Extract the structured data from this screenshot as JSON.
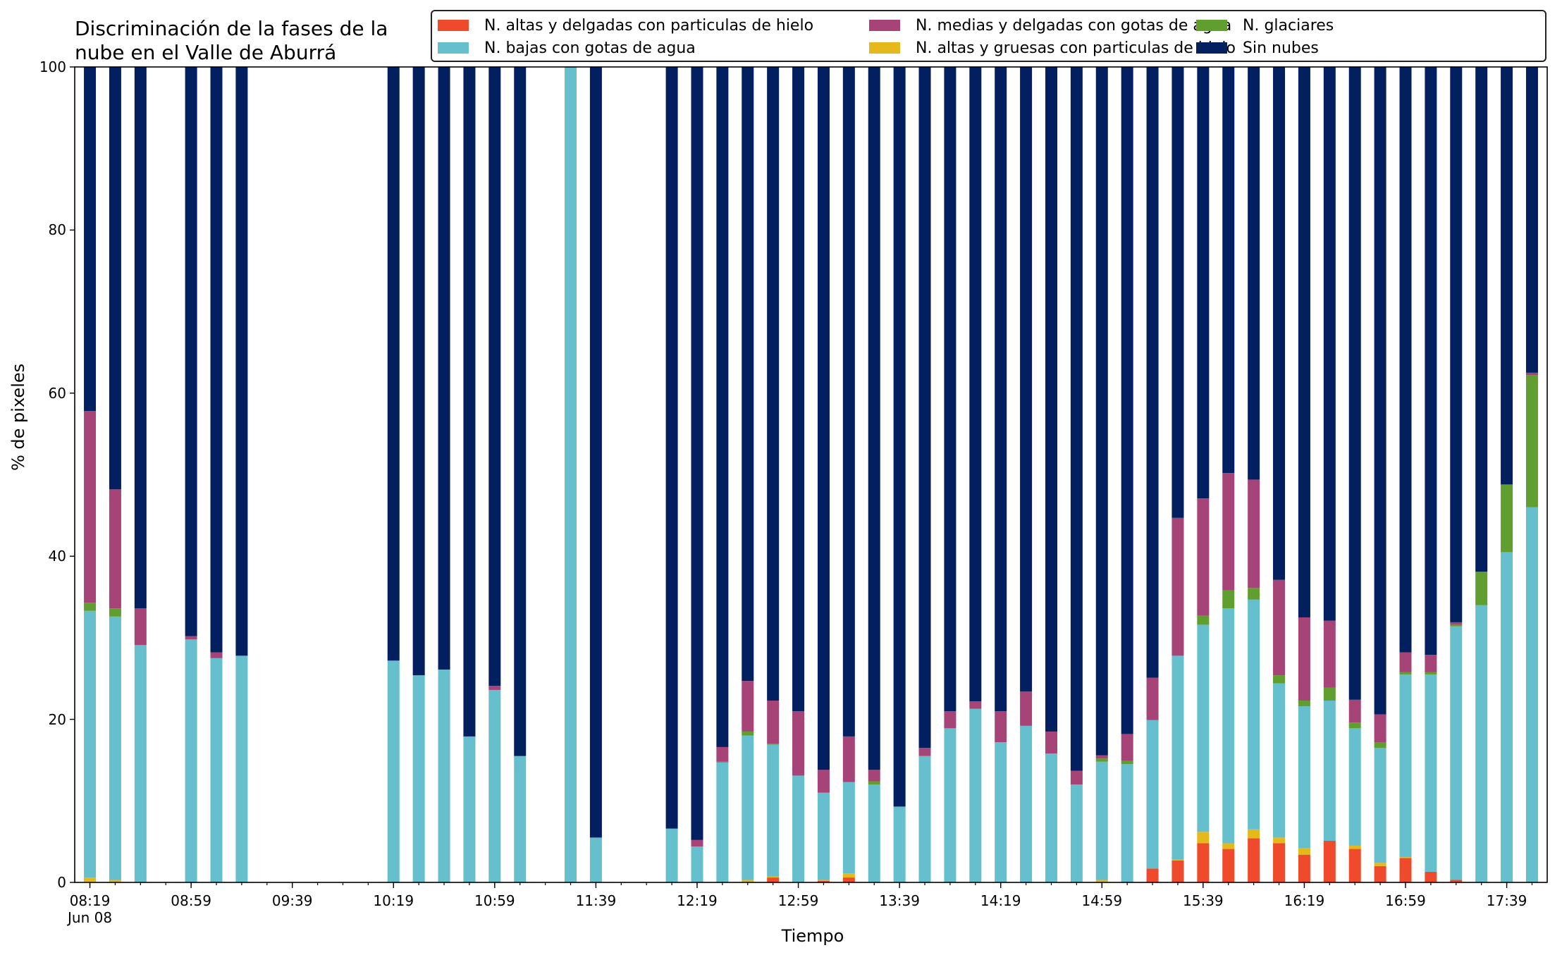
{
  "chart_data": {
    "type": "bar",
    "stacked": true,
    "title": "Discriminación de la fases de la\nnube en el Valle de Aburrá",
    "xlabel": "Tiempo",
    "ylabel": "% de pixeles",
    "ylim": [
      0,
      100
    ],
    "yticks": [
      "0",
      "20",
      "40",
      "60",
      "80",
      "100"
    ],
    "xtick_labels": [
      "08:19\nJun 08",
      "08:59",
      "09:39",
      "10:19",
      "10:59",
      "11:39",
      "12:19",
      "12:59",
      "13:39",
      "14:19",
      "14:59",
      "15:39",
      "16:19",
      "16:59",
      "17:39"
    ],
    "legend_position": "top-right",
    "grid": false,
    "colors": {
      "altas_delgadas_hielo": "#f04a2c",
      "altas_gruesas_hielo": "#e5b81c",
      "bajas_agua": "#66bfcc",
      "glaciares": "#5f9e2f",
      "medias_delgadas_agua": "#a64478",
      "sin_nubes": "#02205f"
    },
    "series": [
      {
        "key": "altas_delgadas_hielo",
        "name": "N. altas y delgadas con particulas de hielo"
      },
      {
        "key": "altas_gruesas_hielo",
        "name": "N. altas y gruesas con particulas de hielo"
      },
      {
        "key": "bajas_agua",
        "name": "N. bajas con gotas de agua"
      },
      {
        "key": "glaciares",
        "name": "N. glaciares"
      },
      {
        "key": "medias_delgadas_agua",
        "name": "N. medias y delgadas con gotas de agua"
      },
      {
        "key": "sin_nubes",
        "name": "Sin nubes"
      }
    ],
    "legend_order": [
      "altas_delgadas_hielo",
      "bajas_agua",
      "medias_delgadas_agua",
      "altas_gruesas_hielo",
      "glaciares",
      "sin_nubes"
    ],
    "bars": [
      {
        "time": "08:19",
        "altas_delgadas_hielo": 0.0,
        "altas_gruesas_hielo": 0.6,
        "bajas_agua": 32.7,
        "glaciares": 1.0,
        "medias_delgadas_agua": 23.5,
        "sin_nubes": 42.2
      },
      {
        "time": "08:29",
        "altas_delgadas_hielo": 0.0,
        "altas_gruesas_hielo": 0.3,
        "bajas_agua": 32.3,
        "glaciares": 1.0,
        "medias_delgadas_agua": 14.6,
        "sin_nubes": 51.8
      },
      {
        "time": "08:39",
        "altas_delgadas_hielo": 0.0,
        "altas_gruesas_hielo": 0.0,
        "bajas_agua": 29.1,
        "glaciares": 0.0,
        "medias_delgadas_agua": 4.5,
        "sin_nubes": 66.4
      },
      {
        "time": "08:59",
        "altas_delgadas_hielo": 0.0,
        "altas_gruesas_hielo": 0.0,
        "bajas_agua": 29.8,
        "glaciares": 0.0,
        "medias_delgadas_agua": 0.4,
        "sin_nubes": 69.8
      },
      {
        "time": "09:09",
        "altas_delgadas_hielo": 0.0,
        "altas_gruesas_hielo": 0.0,
        "bajas_agua": 27.5,
        "glaciares": 0.0,
        "medias_delgadas_agua": 0.7,
        "sin_nubes": 71.8
      },
      {
        "time": "09:19",
        "altas_delgadas_hielo": 0.0,
        "altas_gruesas_hielo": 0.0,
        "bajas_agua": 27.8,
        "glaciares": 0.0,
        "medias_delgadas_agua": 0.0,
        "sin_nubes": 72.2
      },
      {
        "time": "10:19",
        "altas_delgadas_hielo": 0.0,
        "altas_gruesas_hielo": 0.0,
        "bajas_agua": 27.2,
        "glaciares": 0.0,
        "medias_delgadas_agua": 0.0,
        "sin_nubes": 72.8
      },
      {
        "time": "10:29",
        "altas_delgadas_hielo": 0.0,
        "altas_gruesas_hielo": 0.0,
        "bajas_agua": 25.4,
        "glaciares": 0.0,
        "medias_delgadas_agua": 0.0,
        "sin_nubes": 74.6
      },
      {
        "time": "10:39",
        "altas_delgadas_hielo": 0.0,
        "altas_gruesas_hielo": 0.0,
        "bajas_agua": 26.1,
        "glaciares": 0.0,
        "medias_delgadas_agua": 0.0,
        "sin_nubes": 73.9
      },
      {
        "time": "10:49",
        "altas_delgadas_hielo": 0.0,
        "altas_gruesas_hielo": 0.0,
        "bajas_agua": 17.9,
        "glaciares": 0.0,
        "medias_delgadas_agua": 0.0,
        "sin_nubes": 82.1
      },
      {
        "time": "10:59",
        "altas_delgadas_hielo": 0.0,
        "altas_gruesas_hielo": 0.0,
        "bajas_agua": 23.6,
        "glaciares": 0.0,
        "medias_delgadas_agua": 0.5,
        "sin_nubes": 75.9
      },
      {
        "time": "11:09",
        "altas_delgadas_hielo": 0.0,
        "altas_gruesas_hielo": 0.0,
        "bajas_agua": 15.5,
        "glaciares": 0.0,
        "medias_delgadas_agua": 0.0,
        "sin_nubes": 84.5
      },
      {
        "time": "11:29",
        "altas_delgadas_hielo": 0.0,
        "altas_gruesas_hielo": 0.0,
        "bajas_agua": 100.0,
        "glaciares": 0.0,
        "medias_delgadas_agua": 0.0,
        "sin_nubes": 0.0
      },
      {
        "time": "11:39",
        "altas_delgadas_hielo": 0.0,
        "altas_gruesas_hielo": 0.0,
        "bajas_agua": 5.5,
        "glaciares": 0.0,
        "medias_delgadas_agua": 0.0,
        "sin_nubes": 94.5
      },
      {
        "time": "12:09",
        "altas_delgadas_hielo": 0.0,
        "altas_gruesas_hielo": 0.0,
        "bajas_agua": 6.6,
        "glaciares": 0.0,
        "medias_delgadas_agua": 0.0,
        "sin_nubes": 93.4
      },
      {
        "time": "12:19",
        "altas_delgadas_hielo": 0.0,
        "altas_gruesas_hielo": 0.0,
        "bajas_agua": 4.4,
        "glaciares": 0.0,
        "medias_delgadas_agua": 0.8,
        "sin_nubes": 94.8
      },
      {
        "time": "12:29",
        "altas_delgadas_hielo": 0.0,
        "altas_gruesas_hielo": 0.0,
        "bajas_agua": 14.7,
        "glaciares": 0.1,
        "medias_delgadas_agua": 1.8,
        "sin_nubes": 83.4
      },
      {
        "time": "12:39",
        "altas_delgadas_hielo": 0.0,
        "altas_gruesas_hielo": 0.3,
        "bajas_agua": 17.7,
        "glaciares": 0.5,
        "medias_delgadas_agua": 6.2,
        "sin_nubes": 75.3
      },
      {
        "time": "12:49",
        "altas_delgadas_hielo": 0.6,
        "altas_gruesas_hielo": 0.1,
        "bajas_agua": 16.2,
        "glaciares": 0.1,
        "medias_delgadas_agua": 5.3,
        "sin_nubes": 77.7
      },
      {
        "time": "12:59",
        "altas_delgadas_hielo": 0.0,
        "altas_gruesas_hielo": 0.0,
        "bajas_agua": 13.1,
        "glaciares": 0.0,
        "medias_delgadas_agua": 7.9,
        "sin_nubes": 79.0
      },
      {
        "time": "13:09",
        "altas_delgadas_hielo": 0.2,
        "altas_gruesas_hielo": 0.1,
        "bajas_agua": 10.7,
        "glaciares": 0.0,
        "medias_delgadas_agua": 2.8,
        "sin_nubes": 86.2
      },
      {
        "time": "13:19",
        "altas_delgadas_hielo": 0.6,
        "altas_gruesas_hielo": 0.5,
        "bajas_agua": 11.2,
        "glaciares": 0.0,
        "medias_delgadas_agua": 5.6,
        "sin_nubes": 82.1
      },
      {
        "time": "13:29",
        "altas_delgadas_hielo": 0.0,
        "altas_gruesas_hielo": 0.0,
        "bajas_agua": 12.0,
        "glaciares": 0.4,
        "medias_delgadas_agua": 1.4,
        "sin_nubes": 86.2
      },
      {
        "time": "13:39",
        "altas_delgadas_hielo": 0.0,
        "altas_gruesas_hielo": 0.0,
        "bajas_agua": 9.3,
        "glaciares": 0.0,
        "medias_delgadas_agua": 0.0,
        "sin_nubes": 90.7
      },
      {
        "time": "13:49",
        "altas_delgadas_hielo": 0.0,
        "altas_gruesas_hielo": 0.0,
        "bajas_agua": 15.5,
        "glaciares": 0.0,
        "medias_delgadas_agua": 1.0,
        "sin_nubes": 83.5
      },
      {
        "time": "13:59",
        "altas_delgadas_hielo": 0.0,
        "altas_gruesas_hielo": 0.0,
        "bajas_agua": 18.9,
        "glaciares": 0.0,
        "medias_delgadas_agua": 2.1,
        "sin_nubes": 79.0
      },
      {
        "time": "14:09",
        "altas_delgadas_hielo": 0.0,
        "altas_gruesas_hielo": 0.0,
        "bajas_agua": 21.3,
        "glaciares": 0.0,
        "medias_delgadas_agua": 0.9,
        "sin_nubes": 77.8
      },
      {
        "time": "14:19",
        "altas_delgadas_hielo": 0.0,
        "altas_gruesas_hielo": 0.0,
        "bajas_agua": 17.2,
        "glaciares": 0.0,
        "medias_delgadas_agua": 3.8,
        "sin_nubes": 79.0
      },
      {
        "time": "14:29",
        "altas_delgadas_hielo": 0.0,
        "altas_gruesas_hielo": 0.0,
        "bajas_agua": 19.2,
        "glaciares": 0.0,
        "medias_delgadas_agua": 4.2,
        "sin_nubes": 76.6
      },
      {
        "time": "14:39",
        "altas_delgadas_hielo": 0.0,
        "altas_gruesas_hielo": 0.0,
        "bajas_agua": 15.8,
        "glaciares": 0.0,
        "medias_delgadas_agua": 2.7,
        "sin_nubes": 81.5
      },
      {
        "time": "14:49",
        "altas_delgadas_hielo": 0.0,
        "altas_gruesas_hielo": 0.0,
        "bajas_agua": 12.0,
        "glaciares": 0.0,
        "medias_delgadas_agua": 1.7,
        "sin_nubes": 86.3
      },
      {
        "time": "14:59",
        "altas_delgadas_hielo": 0.0,
        "altas_gruesas_hielo": 0.3,
        "bajas_agua": 14.5,
        "glaciares": 0.4,
        "medias_delgadas_agua": 0.4,
        "sin_nubes": 84.4
      },
      {
        "time": "15:09",
        "altas_delgadas_hielo": 0.0,
        "altas_gruesas_hielo": 0.0,
        "bajas_agua": 14.5,
        "glaciares": 0.4,
        "medias_delgadas_agua": 3.3,
        "sin_nubes": 81.8
      },
      {
        "time": "15:19",
        "altas_delgadas_hielo": 1.7,
        "altas_gruesas_hielo": 0.0,
        "bajas_agua": 18.2,
        "glaciares": 0.0,
        "medias_delgadas_agua": 5.2,
        "sin_nubes": 74.9
      },
      {
        "time": "15:29",
        "altas_delgadas_hielo": 2.7,
        "altas_gruesas_hielo": 0.1,
        "bajas_agua": 25.0,
        "glaciares": 0.0,
        "medias_delgadas_agua": 16.9,
        "sin_nubes": 55.3
      },
      {
        "time": "15:39",
        "altas_delgadas_hielo": 4.8,
        "altas_gruesas_hielo": 1.4,
        "bajas_agua": 25.4,
        "glaciares": 1.1,
        "medias_delgadas_agua": 14.4,
        "sin_nubes": 52.9
      },
      {
        "time": "15:49",
        "altas_delgadas_hielo": 4.1,
        "altas_gruesas_hielo": 0.7,
        "bajas_agua": 28.8,
        "glaciares": 2.2,
        "medias_delgadas_agua": 14.4,
        "sin_nubes": 49.8
      },
      {
        "time": "15:59",
        "altas_delgadas_hielo": 5.4,
        "altas_gruesas_hielo": 1.1,
        "bajas_agua": 28.2,
        "glaciares": 1.4,
        "medias_delgadas_agua": 13.3,
        "sin_nubes": 50.6
      },
      {
        "time": "16:09",
        "altas_delgadas_hielo": 4.8,
        "altas_gruesas_hielo": 0.7,
        "bajas_agua": 18.9,
        "glaciares": 1.0,
        "medias_delgadas_agua": 11.7,
        "sin_nubes": 62.9
      },
      {
        "time": "16:19",
        "altas_delgadas_hielo": 3.4,
        "altas_gruesas_hielo": 0.8,
        "bajas_agua": 17.4,
        "glaciares": 0.7,
        "medias_delgadas_agua": 10.2,
        "sin_nubes": 67.5
      },
      {
        "time": "16:29",
        "altas_delgadas_hielo": 5.1,
        "altas_gruesas_hielo": 0.0,
        "bajas_agua": 17.2,
        "glaciares": 1.6,
        "medias_delgadas_agua": 8.2,
        "sin_nubes": 67.9
      },
      {
        "time": "16:39",
        "altas_delgadas_hielo": 4.1,
        "altas_gruesas_hielo": 0.4,
        "bajas_agua": 14.4,
        "glaciares": 0.7,
        "medias_delgadas_agua": 2.8,
        "sin_nubes": 77.6
      },
      {
        "time": "16:49",
        "altas_delgadas_hielo": 2.0,
        "altas_gruesas_hielo": 0.4,
        "bajas_agua": 14.1,
        "glaciares": 0.7,
        "medias_delgadas_agua": 3.4,
        "sin_nubes": 79.4
      },
      {
        "time": "16:59",
        "altas_delgadas_hielo": 3.0,
        "altas_gruesas_hielo": 0.1,
        "bajas_agua": 22.4,
        "glaciares": 0.3,
        "medias_delgadas_agua": 2.4,
        "sin_nubes": 71.8
      },
      {
        "time": "17:09",
        "altas_delgadas_hielo": 1.3,
        "altas_gruesas_hielo": 0.0,
        "bajas_agua": 24.2,
        "glaciares": 0.3,
        "medias_delgadas_agua": 2.1,
        "sin_nubes": 72.1
      },
      {
        "time": "17:19",
        "altas_delgadas_hielo": 0.3,
        "altas_gruesas_hielo": 0.0,
        "bajas_agua": 31.1,
        "glaciares": 0.2,
        "medias_delgadas_agua": 0.3,
        "sin_nubes": 68.1
      },
      {
        "time": "17:29",
        "altas_delgadas_hielo": 0.0,
        "altas_gruesas_hielo": 0.0,
        "bajas_agua": 34.0,
        "glaciares": 4.1,
        "medias_delgadas_agua": 0.0,
        "sin_nubes": 61.9
      },
      {
        "time": "17:39",
        "altas_delgadas_hielo": 0.0,
        "altas_gruesas_hielo": 0.0,
        "bajas_agua": 40.5,
        "glaciares": 8.3,
        "medias_delgadas_agua": 0.0,
        "sin_nubes": 51.2
      },
      {
        "time": "17:49",
        "altas_delgadas_hielo": 0.0,
        "altas_gruesas_hielo": 0.0,
        "bajas_agua": 46.0,
        "glaciares": 16.2,
        "medias_delgadas_agua": 0.3,
        "sin_nubes": 37.5
      }
    ]
  }
}
